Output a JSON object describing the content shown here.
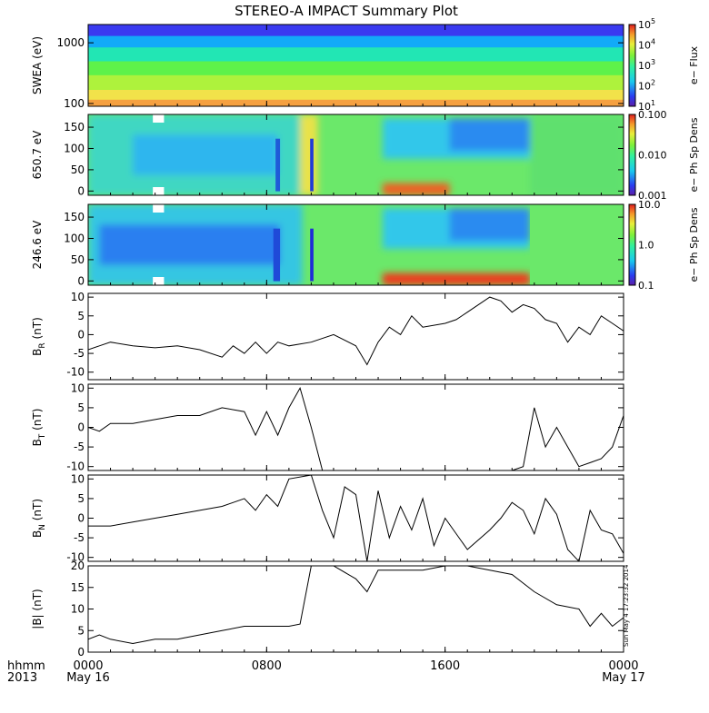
{
  "title": "STEREO-A IMPACT Summary Plot",
  "x_axis": {
    "row1_label": "hhmm",
    "row2_label": "2013",
    "ticks": [
      {
        "hour": 0,
        "label": "0000",
        "date": "May 16"
      },
      {
        "hour": 8,
        "label": "0800",
        "date": ""
      },
      {
        "hour": 16,
        "label": "1600",
        "date": ""
      },
      {
        "hour": 24,
        "label": "0000",
        "date": "May 17"
      }
    ],
    "range_hours": [
      0,
      24
    ]
  },
  "timestamp": "Sun May  4 17:23:32 2014",
  "colors": {
    "trace": "#000000",
    "missing": "#ffffff"
  },
  "chart_data": [
    {
      "type": "heatmap",
      "ylabel": "SWEA (eV)",
      "y_log": true,
      "yticks": [
        {
          "v": 100,
          "label": "100"
        },
        {
          "v": 1000,
          "label": "1000"
        }
      ],
      "ylim": [
        90,
        2000
      ],
      "colorbar": {
        "label": "e− Flux",
        "log": true,
        "ticks": [
          {
            "base": "10",
            "exp": "1"
          },
          {
            "base": "10",
            "exp": "2"
          },
          {
            "base": "10",
            "exp": "3"
          },
          {
            "base": "10",
            "exp": "4"
          },
          {
            "base": "10",
            "exp": "5"
          }
        ]
      },
      "bands": [
        {
          "y_frac": [
            0.0,
            0.14
          ],
          "color": "#3a3af0"
        },
        {
          "y_frac": [
            0.14,
            0.28
          ],
          "color": "#12aaf8"
        },
        {
          "y_frac": [
            0.28,
            0.45
          ],
          "color": "#22e6b4"
        },
        {
          "y_frac": [
            0.45,
            0.62
          ],
          "color": "#5ef24a"
        },
        {
          "y_frac": [
            0.62,
            0.8
          ],
          "color": "#aef23c"
        },
        {
          "y_frac": [
            0.8,
            0.92
          ],
          "color": "#f2e24a"
        },
        {
          "y_frac": [
            0.92,
            1.0
          ],
          "color": "#f5a040"
        }
      ]
    },
    {
      "type": "heatmap",
      "ylabel": "650.7 eV",
      "yticks": [
        {
          "v": 0,
          "label": "0"
        },
        {
          "v": 50,
          "label": "50"
        },
        {
          "v": 100,
          "label": "100"
        },
        {
          "v": 150,
          "label": "150"
        }
      ],
      "ylim": [
        -10,
        180
      ],
      "colorbar": {
        "label": "e− Ph Sp Dens",
        "log": true,
        "ticks": [
          {
            "label": "0.001"
          },
          {
            "label": "0.010"
          },
          {
            "label": "0.100"
          }
        ]
      },
      "base_color": "#6be86a",
      "blocks": [
        {
          "t": [
            0,
            9.5
          ],
          "y_frac": [
            0.0,
            1.0
          ],
          "color": "#3fd7c2"
        },
        {
          "t": [
            2,
            8.5
          ],
          "y_frac": [
            0.25,
            0.75
          ],
          "color": "#2fb6ee"
        },
        {
          "t": [
            9.5,
            10.3
          ],
          "y_frac": [
            0.0,
            1.0
          ],
          "color": "#e8e24a"
        },
        {
          "t": [
            13.2,
            19.8
          ],
          "y_frac": [
            0.05,
            0.55
          ],
          "color": "#31c7ea"
        },
        {
          "t": [
            16.2,
            19.8
          ],
          "y_frac": [
            0.05,
            0.45
          ],
          "color": "#2a8bf0"
        },
        {
          "t": [
            13.2,
            16.2
          ],
          "y_frac": [
            0.85,
            1.0
          ],
          "color": "#ef5f23"
        },
        {
          "t": [
            19.8,
            24
          ],
          "y_frac": [
            0.0,
            1.0
          ],
          "color": "#5fe06e"
        }
      ],
      "stripes": [
        {
          "t": [
            9.95,
            10.1
          ],
          "color": "#1f3ad8"
        },
        {
          "t": [
            8.4,
            8.6
          ],
          "color": "#1f5ad8"
        }
      ],
      "missing_t": [
        [
          2.9,
          3.4
        ]
      ]
    },
    {
      "type": "heatmap",
      "ylabel": "246.6 eV",
      "yticks": [
        {
          "v": 0,
          "label": "0"
        },
        {
          "v": 50,
          "label": "50"
        },
        {
          "v": 100,
          "label": "100"
        },
        {
          "v": 150,
          "label": "150"
        }
      ],
      "ylim": [
        -10,
        180
      ],
      "colorbar": {
        "label": "e− Ph Sp Dens",
        "log": true,
        "ticks": [
          {
            "label": "0.1"
          },
          {
            "label": "1.0"
          },
          {
            "label": "10.0"
          }
        ]
      },
      "base_color": "#6be86a",
      "blocks": [
        {
          "t": [
            0,
            9.6
          ],
          "y_frac": [
            0.0,
            1.0
          ],
          "color": "#36c6e2"
        },
        {
          "t": [
            0.5,
            8.6
          ],
          "y_frac": [
            0.25,
            0.75
          ],
          "color": "#2a7ff0"
        },
        {
          "t": [
            13.2,
            19.8
          ],
          "y_frac": [
            0.05,
            0.55
          ],
          "color": "#31c7ea"
        },
        {
          "t": [
            16.2,
            19.8
          ],
          "y_frac": [
            0.05,
            0.45
          ],
          "color": "#2a8bf0"
        },
        {
          "t": [
            13.2,
            19.8
          ],
          "y_frac": [
            0.85,
            1.0
          ],
          "color": "#ef3a1e"
        }
      ],
      "stripes": [
        {
          "t": [
            9.95,
            10.1
          ],
          "color": "#1f2ad8"
        },
        {
          "t": [
            8.3,
            8.6
          ],
          "color": "#1f4ad8"
        }
      ],
      "missing_t": [
        [
          2.9,
          3.4
        ]
      ]
    },
    {
      "type": "line",
      "ylabel": "B",
      "ylabel_sub": "R",
      "ylabel_unit": "(nT)",
      "ylim": [
        -12,
        11
      ],
      "yticks": [
        -10,
        -5,
        0,
        5,
        10
      ],
      "x": [
        0,
        0.5,
        1,
        2,
        3,
        4,
        5,
        6,
        6.5,
        7,
        7.5,
        8,
        8.5,
        9,
        10,
        11,
        12,
        12.5,
        13,
        13.5,
        14,
        14.5,
        15,
        16,
        16.5,
        17,
        18,
        18.5,
        19,
        19.5,
        20,
        20.5,
        21,
        21.5,
        22,
        22.5,
        23,
        23.5,
        24
      ],
      "y": [
        -4,
        -3,
        -2,
        -3,
        -3.5,
        -3,
        -4,
        -6,
        -3,
        -5,
        -2,
        -5,
        -2,
        -3,
        -2,
        0,
        -3,
        -8,
        -2,
        2,
        0,
        5,
        2,
        3,
        4,
        6,
        10,
        9,
        6,
        8,
        7,
        4,
        3,
        -2,
        2,
        0,
        5,
        3,
        1
      ]
    },
    {
      "type": "line",
      "ylabel": "B",
      "ylabel_sub": "T",
      "ylabel_unit": "(nT)",
      "ylim": [
        -11,
        11
      ],
      "yticks": [
        -10,
        -5,
        0,
        5,
        10
      ],
      "x": [
        0,
        0.5,
        1,
        2,
        3,
        4,
        5,
        6,
        7,
        7.5,
        8,
        8.5,
        9,
        9.5,
        10,
        10.5,
        11,
        12,
        13,
        14,
        15,
        16,
        17,
        18,
        19,
        19.5,
        20,
        20.5,
        21,
        21.5,
        22,
        22.5,
        23,
        23.5,
        24
      ],
      "y": [
        0,
        -1,
        1,
        1,
        2,
        3,
        3,
        5,
        4,
        -2,
        4,
        -2,
        5,
        10,
        0,
        -11,
        -11,
        -11,
        -11,
        -11,
        -11,
        -11,
        -11,
        -11,
        -11,
        -10,
        5,
        -5,
        0,
        -5,
        -10,
        -9,
        -8,
        -5,
        3
      ]
    },
    {
      "type": "line",
      "ylabel": "B",
      "ylabel_sub": "N",
      "ylabel_unit": "(nT)",
      "ylim": [
        -11,
        11
      ],
      "yticks": [
        -10,
        -5,
        0,
        5,
        10
      ],
      "x": [
        0,
        1,
        2,
        3,
        4,
        5,
        6,
        7,
        7.5,
        8,
        8.5,
        9,
        10,
        10.5,
        11,
        11.5,
        12,
        12.5,
        13,
        13.5,
        14,
        14.5,
        15,
        15.5,
        16,
        17,
        18,
        18.5,
        19,
        19.5,
        20,
        20.5,
        21,
        21.5,
        22,
        22.5,
        23,
        23.5,
        24
      ],
      "y": [
        -2,
        -2,
        -1,
        0,
        1,
        2,
        3,
        5,
        2,
        6,
        3,
        10,
        11,
        2,
        -5,
        8,
        6,
        -11,
        7,
        -5,
        3,
        -3,
        5,
        -7,
        0,
        -8,
        -3,
        0,
        4,
        2,
        -4,
        5,
        1,
        -8,
        -11,
        2,
        -3,
        -4,
        -9
      ]
    },
    {
      "type": "line",
      "ylabel": "|B|",
      "ylabel_unit": "(nT)",
      "ylim": [
        0,
        20
      ],
      "yticks": [
        0,
        5,
        10,
        15,
        20
      ],
      "x": [
        0,
        0.5,
        1,
        2,
        3,
        4,
        5,
        6,
        7,
        8,
        9,
        9.5,
        10,
        11,
        12,
        12.5,
        13,
        14,
        15,
        16,
        17,
        18,
        19,
        20,
        21,
        22,
        22.5,
        23,
        23.5,
        24
      ],
      "y": [
        3,
        4,
        3,
        2,
        3,
        3,
        4,
        5,
        6,
        6,
        6,
        6.5,
        20,
        20,
        17,
        14,
        19,
        19,
        19,
        20,
        20,
        19,
        18,
        14,
        11,
        10,
        6,
        9,
        6,
        8
      ]
    }
  ]
}
